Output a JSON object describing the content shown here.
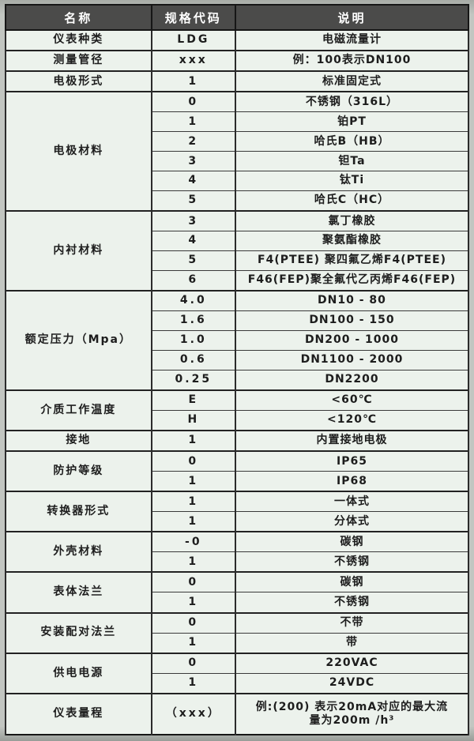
{
  "colors": {
    "header_bg": "#4b4b4a",
    "header_text": "#ffffff",
    "cell_bg": "#ecf2ec",
    "border": "#222222",
    "page_bg": "#c2c6c1"
  },
  "table": {
    "headers": [
      "名称",
      "规格代码",
      "说明"
    ],
    "groups": [
      {
        "name": "仪表种类",
        "rows": [
          {
            "code": "LDG",
            "desc": "电磁流量计"
          }
        ]
      },
      {
        "name": "测量管径",
        "rows": [
          {
            "code": "xxx",
            "desc": "例：100表示DN100"
          }
        ]
      },
      {
        "name": "电极形式",
        "rows": [
          {
            "code": "1",
            "desc": "标准固定式"
          }
        ]
      },
      {
        "name": "电极材料",
        "rows": [
          {
            "code": "0",
            "desc": "不锈钢（316L）"
          },
          {
            "code": "1",
            "desc": "铂PT"
          },
          {
            "code": "2",
            "desc": "哈氏B（HB）"
          },
          {
            "code": "3",
            "desc": "钽Ta"
          },
          {
            "code": "4",
            "desc": "钛Ti"
          },
          {
            "code": "5",
            "desc": "哈氏C（HC）"
          }
        ]
      },
      {
        "name": "内衬材料",
        "rows": [
          {
            "code": "3",
            "desc": "氯丁橡胶"
          },
          {
            "code": "4",
            "desc": "聚氨酯橡胶"
          },
          {
            "code": "5",
            "desc": "F4(PTEE) 聚四氟乙烯F4(PTEE)"
          },
          {
            "code": "6",
            "desc": "F46(FEP)聚全氟代乙丙烯F46(FEP)"
          }
        ]
      },
      {
        "name": "额定压力（Mpa）",
        "rows": [
          {
            "code": "4.0",
            "desc": "DN10 - 80"
          },
          {
            "code": "1.6",
            "desc": "DN100 - 150"
          },
          {
            "code": "1.0",
            "desc": "DN200 - 1000"
          },
          {
            "code": "0.6",
            "desc": "DN1100 - 2000"
          },
          {
            "code": "0.25",
            "desc": "DN2200"
          }
        ]
      },
      {
        "name": "介质工作温度",
        "rows": [
          {
            "code": "E",
            "desc": "<60℃"
          },
          {
            "code": "H",
            "desc": "<120℃"
          }
        ]
      },
      {
        "name": "接地",
        "rows": [
          {
            "code": "1",
            "desc": "内置接地电极"
          }
        ]
      },
      {
        "name": "防护等级",
        "rows": [
          {
            "code": "0",
            "desc": "IP65"
          },
          {
            "code": "1",
            "desc": "IP68"
          }
        ]
      },
      {
        "name": "转换器形式",
        "rows": [
          {
            "code": "1",
            "desc": "一体式"
          },
          {
            "code": "1",
            "desc": "分体式"
          }
        ]
      },
      {
        "name": "外壳材料",
        "rows": [
          {
            "code": "-0",
            "desc": "碳钢"
          },
          {
            "code": "1",
            "desc": "不锈钢"
          }
        ]
      },
      {
        "name": "表体法兰",
        "rows": [
          {
            "code": "0",
            "desc": "碳钢"
          },
          {
            "code": "1",
            "desc": "不锈钢"
          }
        ]
      },
      {
        "name": "安装配对法兰",
        "rows": [
          {
            "code": "0",
            "desc": "不带"
          },
          {
            "code": "1",
            "desc": "带"
          }
        ]
      },
      {
        "name": "供电电源",
        "rows": [
          {
            "code": "0",
            "desc": "220VAC"
          },
          {
            "code": "1",
            "desc": "24VDC"
          }
        ]
      },
      {
        "name": "仪表量程",
        "tall": true,
        "rows": [
          {
            "code": "（xxx）",
            "desc": "例:(200) 表示20mA对应的最大流量为200m /h³"
          }
        ]
      }
    ]
  }
}
